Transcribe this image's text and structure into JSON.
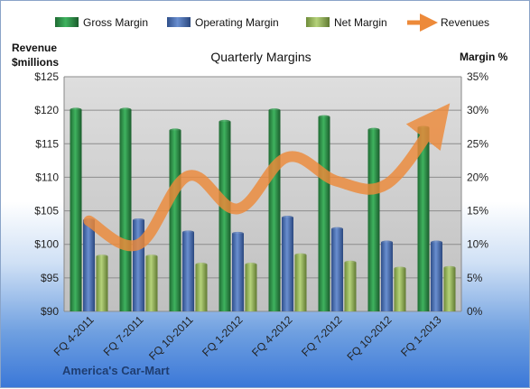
{
  "chart_data": {
    "type": "bar",
    "title": "Quarterly Margins",
    "categories": [
      "FQ 4-2011",
      "FQ 7-2011",
      "FQ 10-2011",
      "FQ 1-2012",
      "FQ 4-2012",
      "FQ 7-2012",
      "FQ 10-2012",
      "FQ 1-2013"
    ],
    "series": [
      {
        "name": "Gross Margin",
        "axis": "right",
        "type": "bar",
        "color": "#2e8b46",
        "values": [
          30.1,
          30.1,
          27.0,
          28.3,
          30.0,
          29.0,
          27.1,
          27.4
        ]
      },
      {
        "name": "Operating Margin",
        "axis": "right",
        "type": "bar",
        "color": "#4a6fb3",
        "values": [
          13.6,
          13.6,
          11.8,
          11.6,
          14.0,
          12.3,
          10.3,
          10.3
        ]
      },
      {
        "name": "Net Margin",
        "axis": "right",
        "type": "bar",
        "color": "#96b957",
        "values": [
          8.2,
          8.2,
          7.0,
          7.0,
          8.4,
          7.3,
          6.4,
          6.5
        ]
      },
      {
        "name": "Revenues",
        "axis": "left",
        "type": "line",
        "color": "#ed8a3a",
        "values": [
          103.5,
          100.0,
          110.2,
          105.3,
          113.0,
          109.4,
          109.0,
          118.5
        ]
      }
    ],
    "y_left": {
      "label_line1": "Revenue",
      "label_line2": "$millions",
      "min": 90,
      "max": 125,
      "ticks": [
        "$90",
        "$95",
        "$100",
        "$105",
        "$110",
        "$115",
        "$120",
        "$125"
      ]
    },
    "y_right": {
      "label": "Margin %",
      "min": 0,
      "max": 35,
      "ticks": [
        "0%",
        "5%",
        "10%",
        "15%",
        "20%",
        "25%",
        "30%",
        "35%"
      ]
    },
    "grid": true,
    "legend": "top",
    "footer": "America's Car-Mart"
  }
}
